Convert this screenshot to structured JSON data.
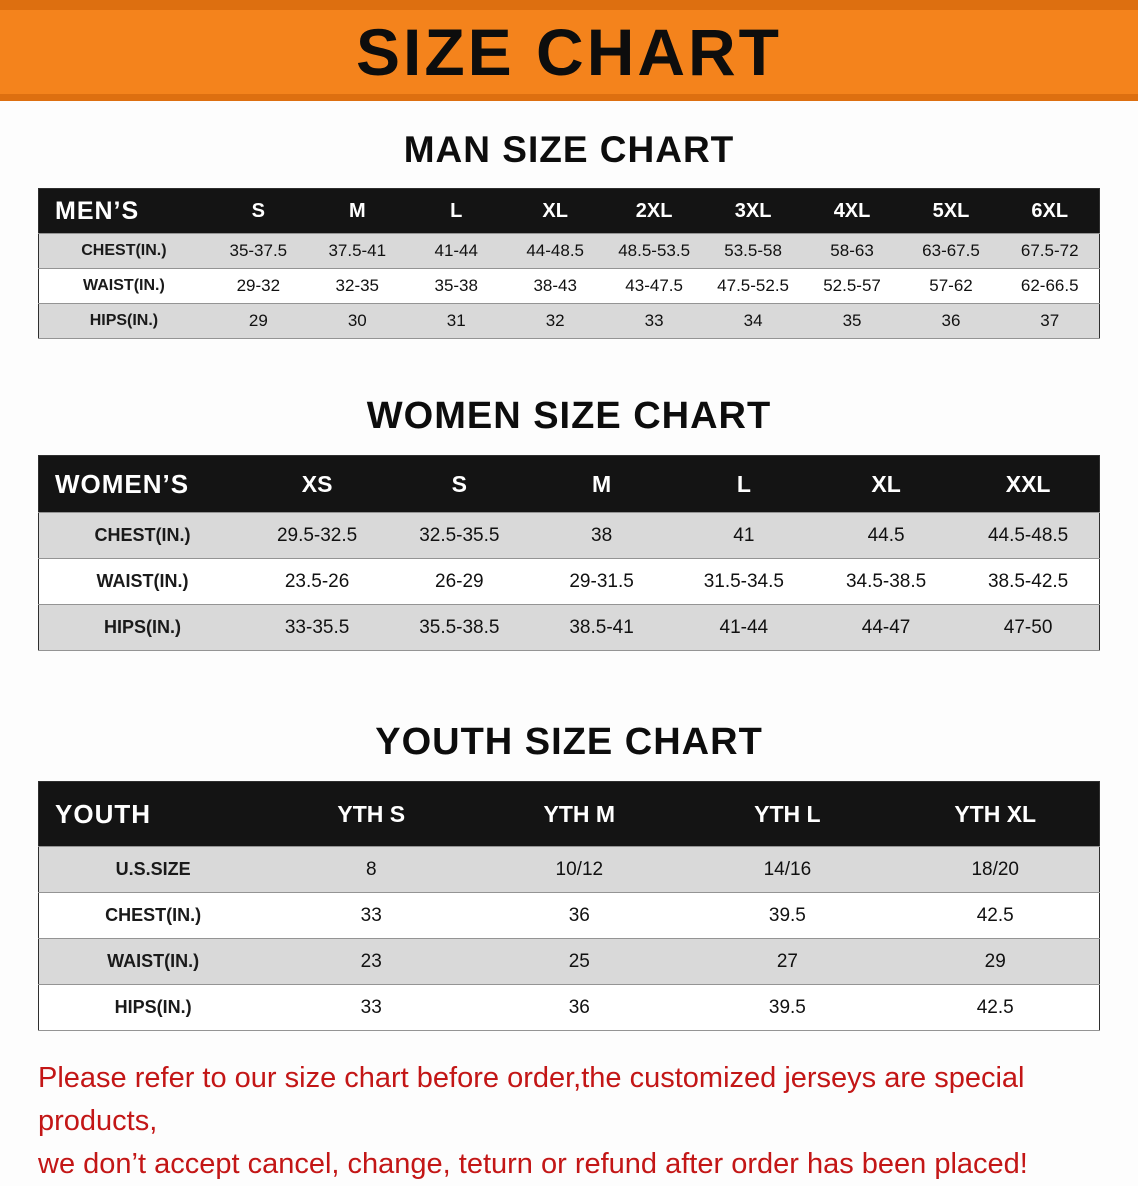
{
  "banner": {
    "title": "SIZE CHART",
    "bg_color": "#f4831c"
  },
  "sections": [
    {
      "id": "men",
      "heading": "MAN SIZE CHART",
      "header": [
        "MEN’S",
        "S",
        "M",
        "L",
        "XL",
        "2XL",
        "3XL",
        "4XL",
        "5XL",
        "6XL"
      ],
      "rows": [
        [
          "CHEST(IN.)",
          "35-37.5",
          "37.5-41",
          "41-44",
          "44-48.5",
          "48.5-53.5",
          "53.5-58",
          "58-63",
          "63-67.5",
          "67.5-72"
        ],
        [
          "WAIST(IN.)",
          "29-32",
          "32-35",
          "35-38",
          "38-43",
          "43-47.5",
          "47.5-52.5",
          "52.5-57",
          "57-62",
          "62-66.5"
        ],
        [
          "HIPS(IN.)",
          "29",
          "30",
          "31",
          "32",
          "33",
          "34",
          "35",
          "36",
          "37"
        ]
      ]
    },
    {
      "id": "women",
      "heading": "WOMEN SIZE CHART",
      "header": [
        "WOMEN’S",
        "XS",
        "S",
        "M",
        "L",
        "XL",
        "XXL"
      ],
      "rows": [
        [
          "CHEST(IN.)",
          "29.5-32.5",
          "32.5-35.5",
          "38",
          "41",
          "44.5",
          "44.5-48.5"
        ],
        [
          "WAIST(IN.)",
          "23.5-26",
          "26-29",
          "29-31.5",
          "31.5-34.5",
          "34.5-38.5",
          "38.5-42.5"
        ],
        [
          "HIPS(IN.)",
          "33-35.5",
          "35.5-38.5",
          "38.5-41",
          "41-44",
          "44-47",
          "47-50"
        ]
      ]
    },
    {
      "id": "youth",
      "heading": "YOUTH SIZE CHART",
      "header": [
        "YOUTH",
        "YTH S",
        "YTH M",
        "YTH L",
        "YTH XL"
      ],
      "rows": [
        [
          "U.S.SIZE",
          "8",
          "10/12",
          "14/16",
          "18/20"
        ],
        [
          "CHEST(IN.)",
          "33",
          "36",
          "39.5",
          "42.5"
        ],
        [
          "WAIST(IN.)",
          "23",
          "25",
          "27",
          "29"
        ],
        [
          "HIPS(IN.)",
          "33",
          "36",
          "39.5",
          "42.5"
        ]
      ]
    }
  ],
  "footer": {
    "line1": "Please refer to our size chart before order,the customized jerseys are special products,",
    "line2": "we don’t accept cancel, change, teturn or refund after order has been placed!",
    "text_color": "#c31616"
  }
}
